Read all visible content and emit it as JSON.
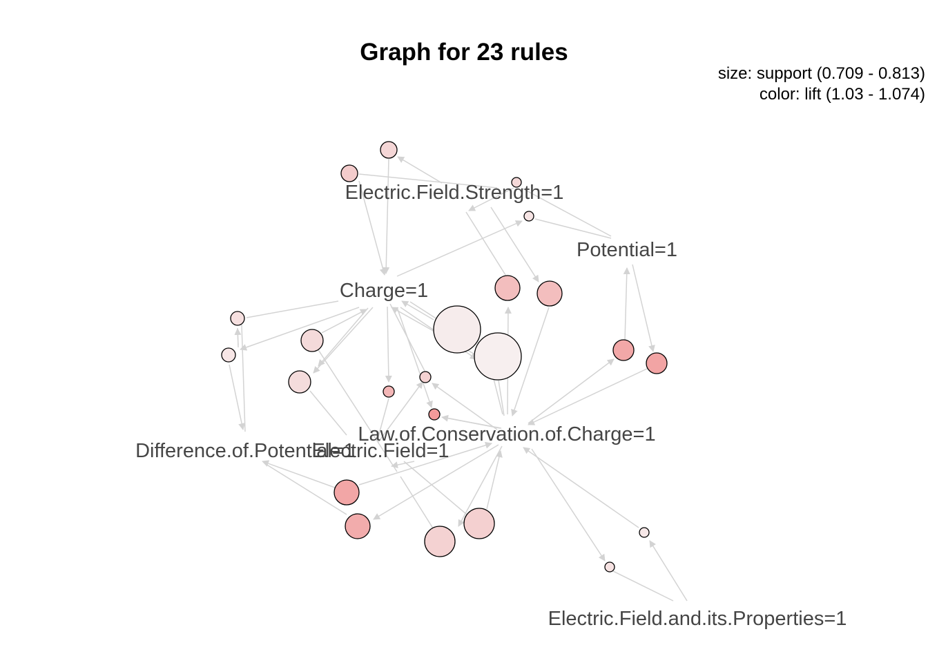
{
  "title": "Graph for 23 rules",
  "legend": {
    "size_line": "size: support (0.709 - 0.813)",
    "color_line": "color: lift (1.03 - 1.074)"
  },
  "colors": {
    "edge": "#d3d3d3",
    "label": "#454545",
    "lift_low": "#f6ecec",
    "lift_high": "#f2a4a4"
  },
  "items": [
    {
      "id": "efs",
      "label": "Electric.Field.Strength=1"
    },
    {
      "id": "pot",
      "label": "Potential=1"
    },
    {
      "id": "chg",
      "label": "Charge=1"
    },
    {
      "id": "loc",
      "label": "Law.of.Conservation.of.Charge=1"
    },
    {
      "id": "dop",
      "label": "Difference.of.Potential=1"
    },
    {
      "id": "ef",
      "label": "Electric.Field=1"
    },
    {
      "id": "efp",
      "label": "Electric.Field.and.its.Properties=1"
    }
  ]
}
